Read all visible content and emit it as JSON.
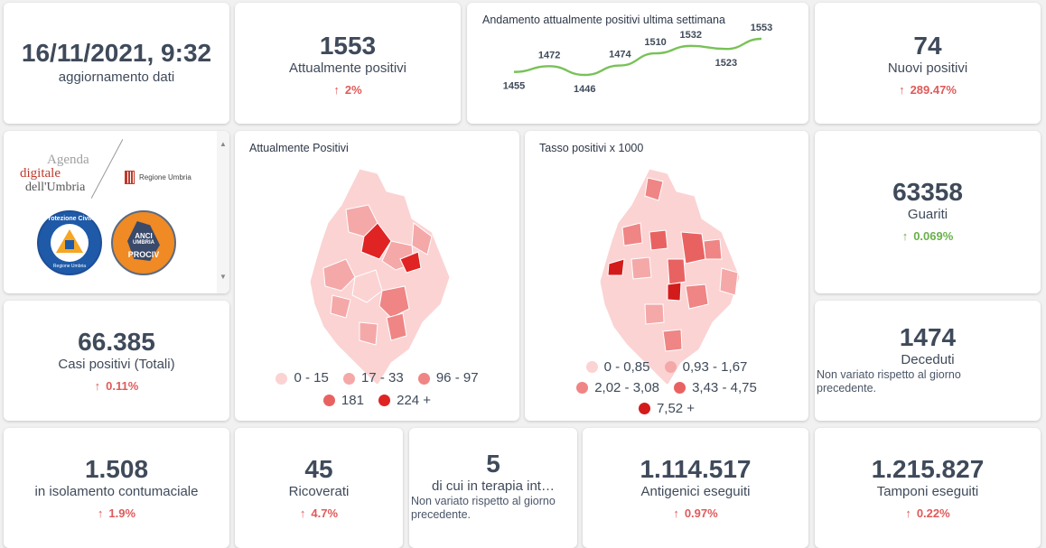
{
  "update": {
    "datetime": "16/11/2021, 9:32",
    "label": "aggiornamento dati"
  },
  "current_positive": {
    "value": "1553",
    "label": "Attualmente positivi",
    "change": "2%"
  },
  "trend": {
    "title": "Andamento attualmente positivi ultima settimana",
    "points": [
      "1455",
      "1472",
      "1446",
      "1474",
      "1510",
      "1532",
      "1523",
      "1553"
    ]
  },
  "new_positive": {
    "value": "74",
    "label": "Nuovi positivi",
    "change": "289.47%"
  },
  "logos": {
    "agenda_line1": "Agenda",
    "agenda_line2": "digitale",
    "agenda_line3": "dell'Umbria",
    "regione": "Regione Umbria",
    "protezione": "Protezione Civile",
    "protezione_sub": "Regione Umbria",
    "anci1": "ANCI",
    "anci2": "UMBRIA",
    "anci3": "PROCIV"
  },
  "map1": {
    "title": "Attualmente Positivi",
    "legend": [
      "0 - 15",
      "17 - 33",
      "96 - 97",
      "181",
      "224 +"
    ],
    "colors": [
      "#fbd3d3",
      "#f5a8a8",
      "#ef8585",
      "#e96262",
      "#e02323"
    ]
  },
  "map2": {
    "title": "Tasso positivi x 1000",
    "legend": [
      "0 - 0,85",
      "0,93 - 1,67",
      "2,02 - 3,08",
      "3,43 - 4,75",
      "7,52 +"
    ],
    "colors": [
      "#fbd3d3",
      "#f5a8a8",
      "#ef8585",
      "#e96262",
      "#d41b1b"
    ]
  },
  "recovered": {
    "value": "63358",
    "label": "Guariti",
    "change": "0.069%"
  },
  "total_cases": {
    "value": "66.385",
    "label": "Casi positivi (Totali)",
    "change": "0.11%"
  },
  "deaths": {
    "value": "1474",
    "label": "Deceduti",
    "note": "Non variato rispetto al giorno precedente."
  },
  "isolation": {
    "value": "1.508",
    "label": "in isolamento contumaciale",
    "change": "1.9%"
  },
  "hospitalized": {
    "value": "45",
    "label": "Ricoverati",
    "change": "4.7%"
  },
  "icu": {
    "value": "5",
    "label": "di cui in terapia int…",
    "note": "Non variato rispetto al giorno precedente."
  },
  "antigen": {
    "value": "1.114.517",
    "label": "Antigenici eseguiti",
    "change": "0.97%"
  },
  "swabs": {
    "value": "1.215.827",
    "label": "Tamponi eseguiti",
    "change": "0.22%"
  },
  "icons": {
    "arrow_up": "arrow-up-icon"
  }
}
